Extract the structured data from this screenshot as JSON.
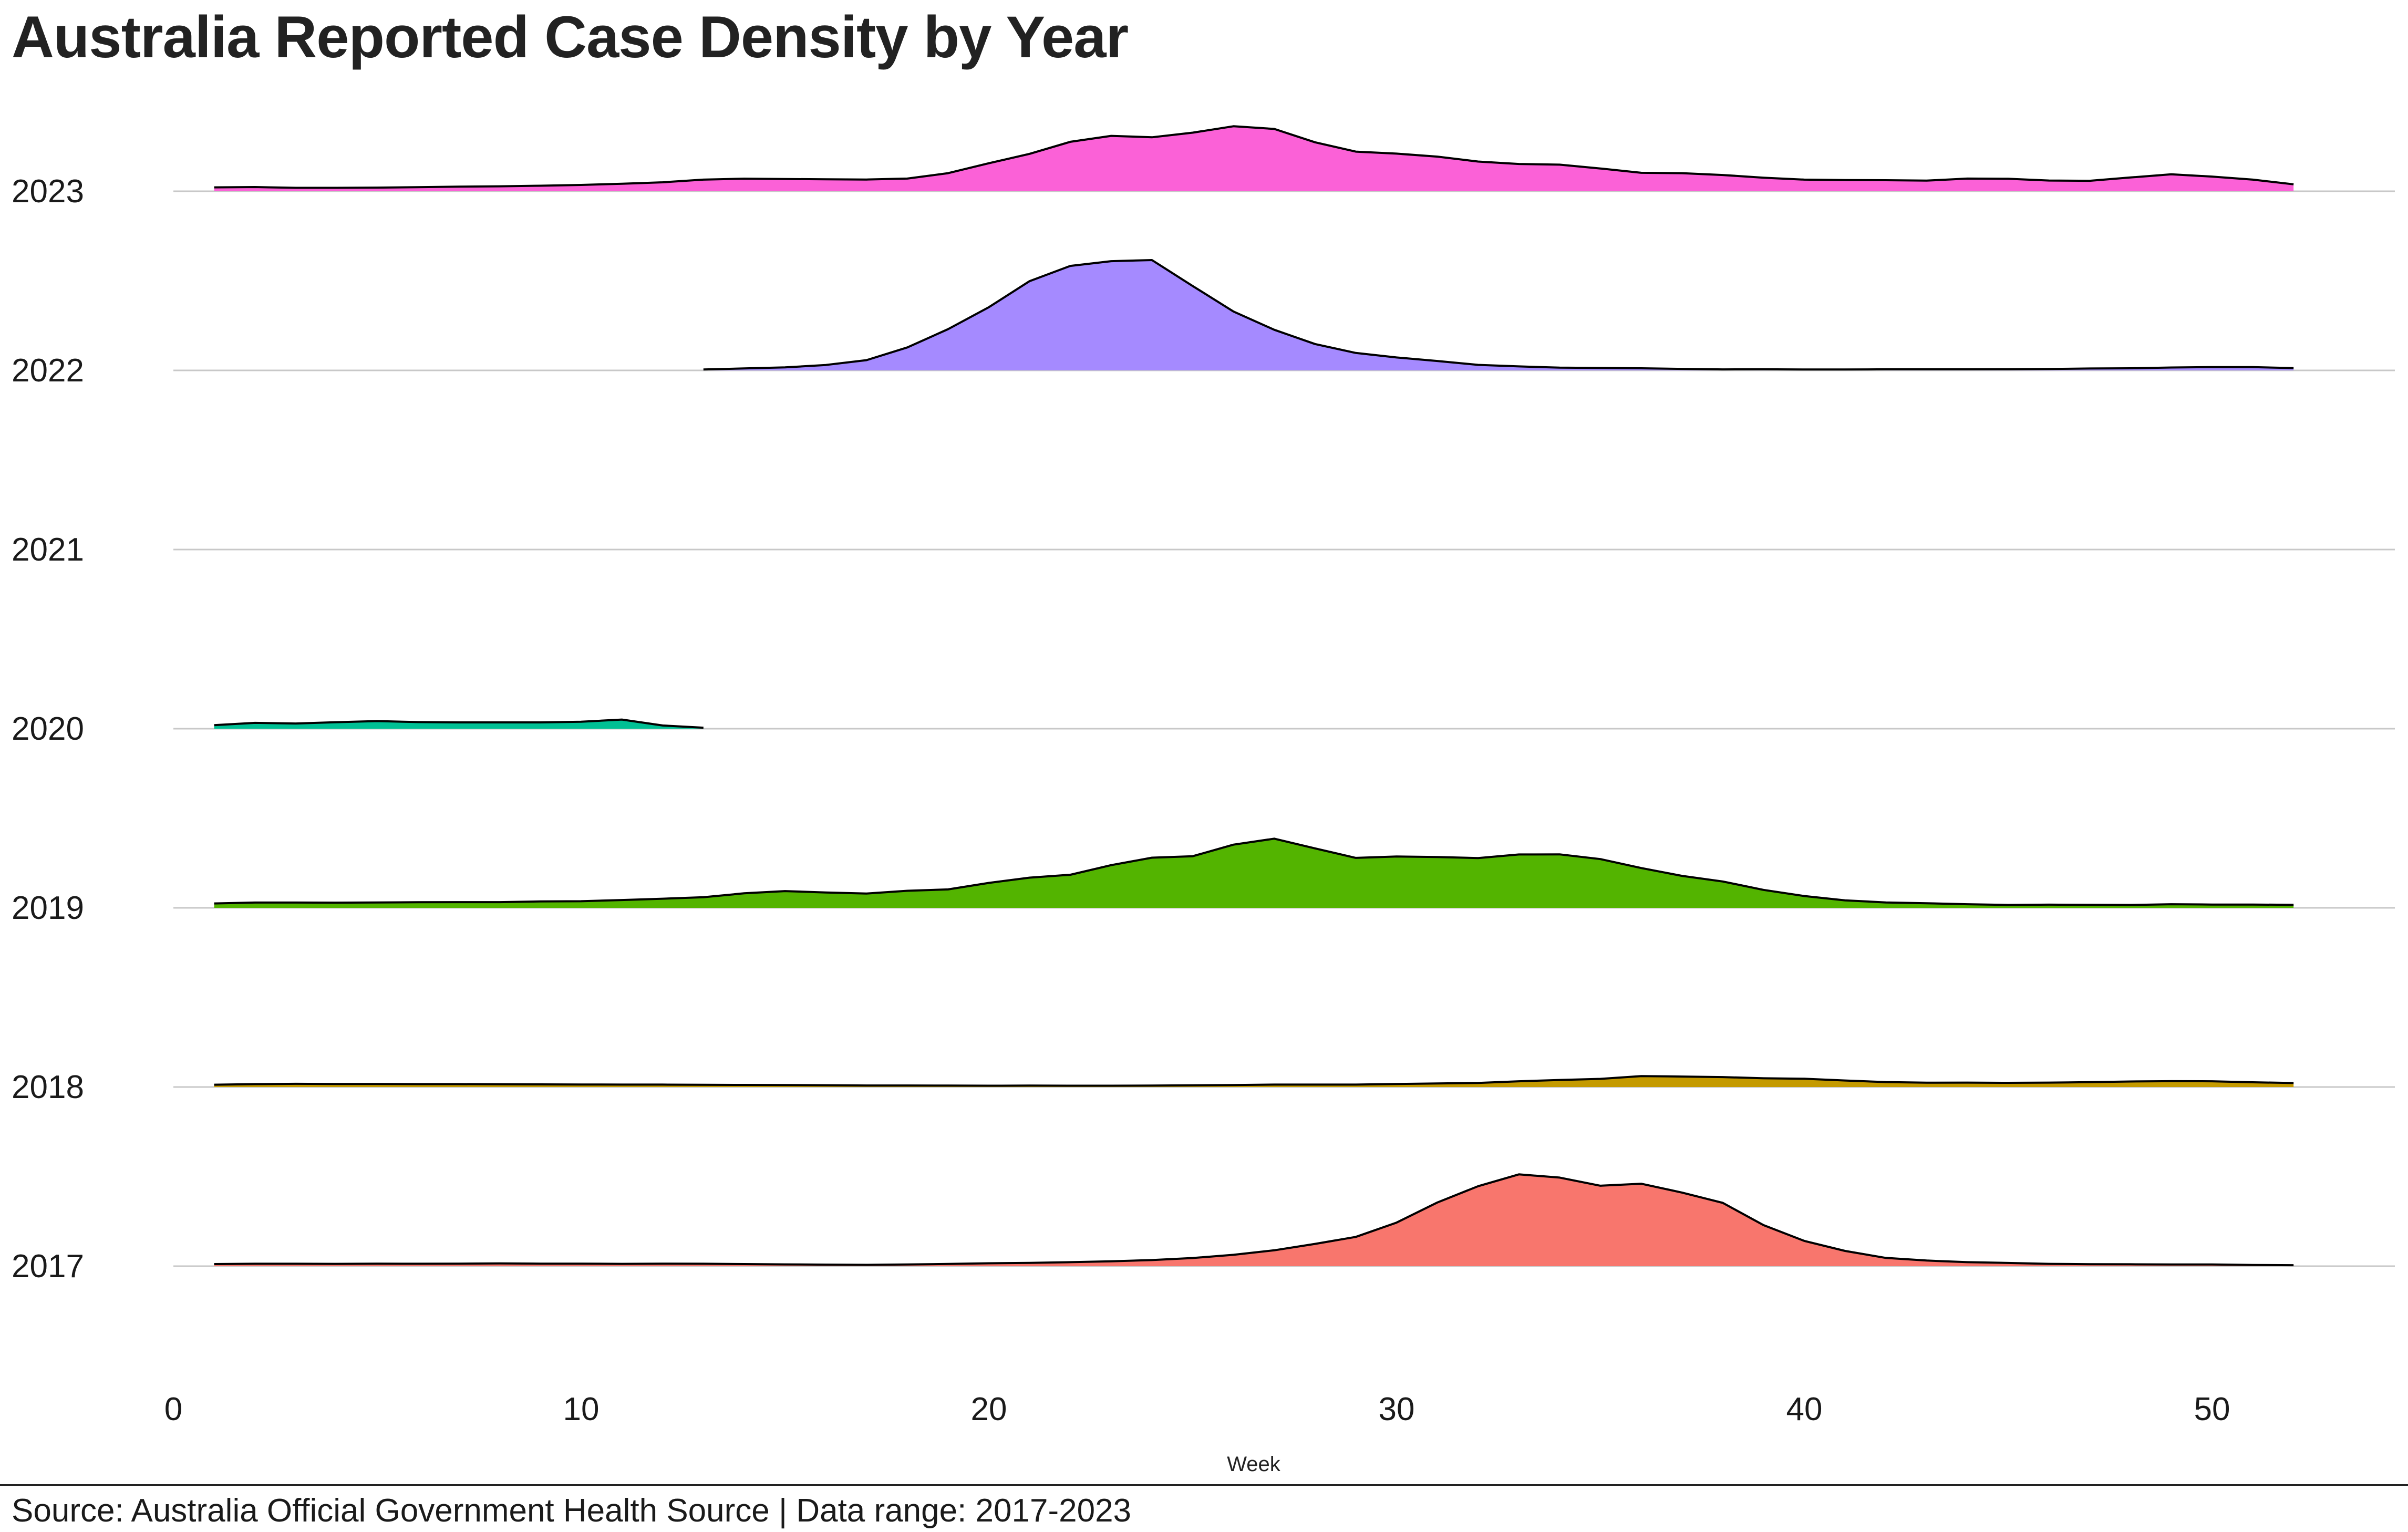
{
  "chart_data": {
    "type": "area",
    "title": "Australia Reported Case Density by Year",
    "xlabel": "Week",
    "ylabel": "",
    "xlim": [
      0,
      54.5
    ],
    "x_ticks": [
      "0",
      "10",
      "20",
      "30",
      "40",
      "50"
    ],
    "grid": "horizontal baselines only",
    "legend": "none",
    "caption": "Source: Australia Official Government Health Source | Data range: 2017-2023",
    "series": [
      {
        "name": "2017",
        "color": "#F8766D",
        "x": [
          1,
          2,
          3,
          4,
          5,
          6,
          7,
          8,
          9,
          10,
          11,
          12,
          13,
          14,
          15,
          16,
          17,
          18,
          19,
          20,
          21,
          22,
          23,
          24,
          25,
          26,
          27,
          28,
          29,
          30,
          31,
          32,
          33,
          34,
          35,
          36,
          37,
          38,
          39,
          40,
          41,
          42,
          43,
          44,
          45,
          46,
          47,
          48,
          49,
          50,
          51,
          52
        ],
        "values": [
          0.019,
          0.022,
          0.022,
          0.021,
          0.023,
          0.022,
          0.023,
          0.025,
          0.023,
          0.023,
          0.021,
          0.023,
          0.022,
          0.019,
          0.016,
          0.014,
          0.012,
          0.015,
          0.02,
          0.026,
          0.03,
          0.036,
          0.044,
          0.055,
          0.074,
          0.103,
          0.144,
          0.202,
          0.265,
          0.395,
          0.577,
          0.725,
          0.832,
          0.803,
          0.729,
          0.747,
          0.667,
          0.574,
          0.372,
          0.229,
          0.138,
          0.075,
          0.051,
          0.036,
          0.029,
          0.021,
          0.018,
          0.017,
          0.015,
          0.015,
          0.011,
          0.009
        ]
      },
      {
        "name": "2018",
        "color": "#C49A00",
        "x": [
          1,
          2,
          3,
          4,
          5,
          6,
          7,
          8,
          9,
          10,
          11,
          12,
          13,
          14,
          15,
          16,
          17,
          18,
          19,
          20,
          21,
          22,
          23,
          24,
          25,
          26,
          27,
          28,
          29,
          30,
          31,
          32,
          33,
          34,
          35,
          36,
          37,
          38,
          39,
          40,
          41,
          42,
          43,
          44,
          45,
          46,
          47,
          48,
          49,
          50,
          51,
          52
        ],
        "values": [
          0.021,
          0.026,
          0.029,
          0.027,
          0.027,
          0.026,
          0.026,
          0.025,
          0.024,
          0.023,
          0.022,
          0.022,
          0.02,
          0.019,
          0.018,
          0.016,
          0.014,
          0.014,
          0.013,
          0.012,
          0.013,
          0.012,
          0.012,
          0.013,
          0.015,
          0.018,
          0.022,
          0.022,
          0.022,
          0.027,
          0.032,
          0.037,
          0.052,
          0.064,
          0.074,
          0.099,
          0.095,
          0.09,
          0.079,
          0.075,
          0.059,
          0.045,
          0.039,
          0.04,
          0.038,
          0.04,
          0.044,
          0.05,
          0.053,
          0.052,
          0.043,
          0.036
        ]
      },
      {
        "name": "2019",
        "color": "#53B400",
        "x": [
          1,
          2,
          3,
          4,
          5,
          6,
          7,
          8,
          9,
          10,
          11,
          12,
          13,
          14,
          15,
          16,
          17,
          18,
          19,
          20,
          21,
          22,
          23,
          24,
          25,
          26,
          27,
          28,
          29,
          30,
          31,
          32,
          33,
          34,
          35,
          36,
          37,
          38,
          39,
          40,
          41,
          42,
          43,
          44,
          45,
          46,
          47,
          48,
          49,
          50,
          51,
          52
        ],
        "values": [
          0.04,
          0.048,
          0.048,
          0.047,
          0.049,
          0.051,
          0.052,
          0.052,
          0.058,
          0.06,
          0.071,
          0.083,
          0.096,
          0.132,
          0.152,
          0.139,
          0.13,
          0.155,
          0.167,
          0.226,
          0.274,
          0.3,
          0.387,
          0.455,
          0.468,
          0.573,
          0.627,
          0.539,
          0.453,
          0.465,
          0.461,
          0.451,
          0.484,
          0.485,
          0.442,
          0.361,
          0.29,
          0.239,
          0.163,
          0.107,
          0.068,
          0.049,
          0.042,
          0.033,
          0.026,
          0.029,
          0.027,
          0.026,
          0.033,
          0.03,
          0.03,
          0.027
        ]
      },
      {
        "name": "2020",
        "color": "#00C094",
        "x": [
          1,
          2,
          3,
          4,
          5,
          6,
          7,
          8,
          9,
          10,
          11,
          12,
          13
        ],
        "values": [
          0.032,
          0.053,
          0.047,
          0.059,
          0.069,
          0.06,
          0.057,
          0.057,
          0.057,
          0.063,
          0.083,
          0.029,
          0.009
        ]
      },
      {
        "name": "2021",
        "color": "#00B6EB",
        "x": [],
        "values": []
      },
      {
        "name": "2022",
        "color": "#A58AFF",
        "x": [
          13,
          14,
          15,
          16,
          17,
          18,
          19,
          20,
          21,
          22,
          23,
          24,
          25,
          26,
          27,
          28,
          29,
          30,
          31,
          32,
          33,
          34,
          35,
          36,
          37,
          38,
          39,
          40,
          41,
          42,
          43,
          44,
          45,
          46,
          47,
          48,
          49,
          50,
          51,
          52
        ],
        "values": [
          0.008,
          0.018,
          0.027,
          0.049,
          0.093,
          0.208,
          0.374,
          0.573,
          0.809,
          0.947,
          0.99,
          1.0,
          0.765,
          0.534,
          0.368,
          0.239,
          0.158,
          0.117,
          0.085,
          0.05,
          0.036,
          0.025,
          0.022,
          0.019,
          0.014,
          0.009,
          0.01,
          0.008,
          0.008,
          0.01,
          0.01,
          0.01,
          0.011,
          0.013,
          0.017,
          0.019,
          0.026,
          0.03,
          0.03,
          0.021
        ]
      },
      {
        "name": "2023",
        "color": "#FB61D7",
        "x": [
          1,
          2,
          3,
          4,
          5,
          6,
          7,
          8,
          9,
          10,
          11,
          12,
          13,
          14,
          15,
          16,
          17,
          18,
          19,
          20,
          21,
          22,
          23,
          24,
          25,
          26,
          27,
          28,
          29,
          30,
          31,
          32,
          33,
          34,
          35,
          36,
          37,
          38,
          39,
          40,
          41,
          42,
          43,
          44,
          45,
          46,
          47,
          48,
          49,
          50,
          51,
          52
        ],
        "values": [
          0.035,
          0.038,
          0.031,
          0.031,
          0.033,
          0.037,
          0.042,
          0.045,
          0.05,
          0.057,
          0.068,
          0.081,
          0.105,
          0.114,
          0.111,
          0.108,
          0.106,
          0.115,
          0.164,
          0.254,
          0.339,
          0.448,
          0.502,
          0.489,
          0.531,
          0.589,
          0.565,
          0.444,
          0.359,
          0.341,
          0.314,
          0.269,
          0.247,
          0.241,
          0.206,
          0.167,
          0.164,
          0.147,
          0.123,
          0.105,
          0.101,
          0.1,
          0.096,
          0.115,
          0.113,
          0.097,
          0.095,
          0.125,
          0.154,
          0.133,
          0.105,
          0.063
        ]
      }
    ]
  }
}
